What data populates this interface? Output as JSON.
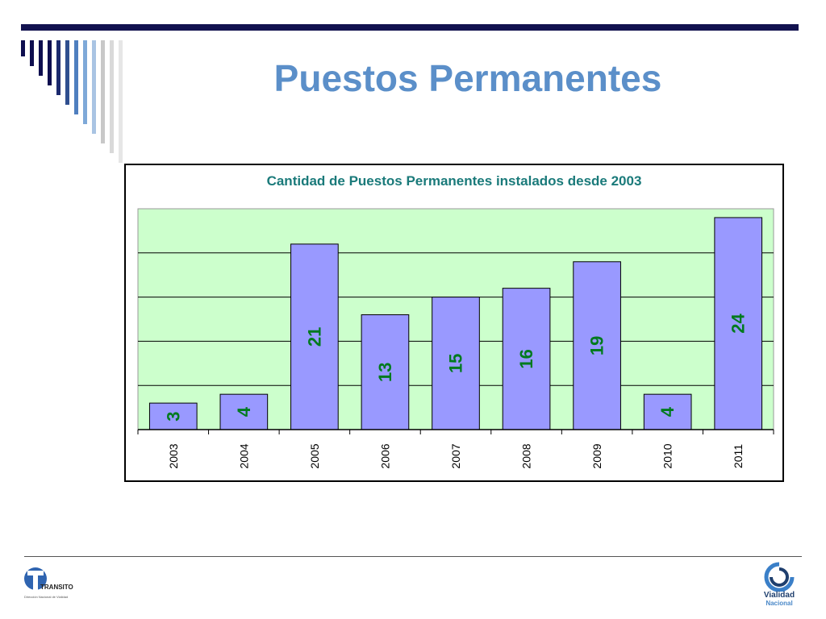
{
  "slide": {
    "title": "Puestos Permanentes",
    "title_color": "#5b8fc9",
    "accent_dark": "#12124f"
  },
  "decoration": {
    "stripe_colors": [
      "#0e0e4f",
      "#0e0e4f",
      "#0e0e4f",
      "#0e0e4f",
      "#1c2a6e",
      "#2f4f8f",
      "#4f7fbf",
      "#7ea9d8",
      "#a9c4e3",
      "#c8c8c8",
      "#d9d9d9",
      "#e6e6e6"
    ]
  },
  "chart_data": {
    "type": "bar",
    "title": "Cantidad de Puestos Permanentes instalados desde 2003",
    "categories": [
      "2003",
      "2004",
      "2005",
      "2006",
      "2007",
      "2008",
      "2009",
      "2010",
      "2011"
    ],
    "values": [
      3,
      4,
      21,
      13,
      15,
      16,
      19,
      4,
      24
    ],
    "ylim": [
      0,
      25
    ],
    "grid": true,
    "plot_background": "#ccffcc",
    "bar_color": "#9999ff",
    "label_color": "#007a1e",
    "xlabel": "",
    "ylabel": ""
  },
  "footer": {
    "left_logo": {
      "icon": "transito-logo-icon",
      "word": "TRANSITO",
      "subtitle": "Dirección Nacional de Vialidad"
    },
    "right_logo": {
      "icon": "vialidad-logo-icon",
      "name": "Vialidad",
      "sub": "Nacional"
    }
  }
}
